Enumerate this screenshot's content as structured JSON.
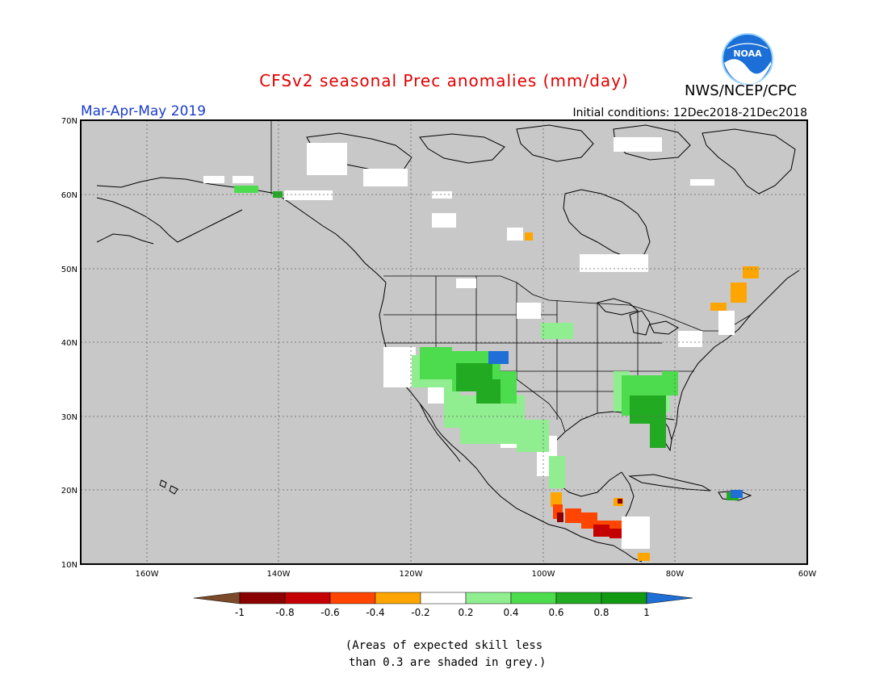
{
  "header": {
    "title": "CFSv2 seasonal Prec anomalies (mm/day)",
    "agency": "NWS/NCEP/CPC",
    "logo_text": "NOAA",
    "season": "Mar-Apr-May 2019",
    "initial_conditions": "Initial conditions: 12Dec2018-21Dec2018"
  },
  "map": {
    "lat_labels": [
      "70N",
      "60N",
      "50N",
      "40N",
      "30N",
      "20N",
      "10N"
    ],
    "lon_labels": [
      "160W",
      "140W",
      "120W",
      "100W",
      "80W",
      "60W"
    ],
    "grey_meaning": "low-skill area"
  },
  "legend": {
    "bins": [
      {
        "color": "#8b0000"
      },
      {
        "color": "#c40000"
      },
      {
        "color": "#ff4500"
      },
      {
        "color": "#ffa500"
      },
      {
        "color": "#ffffff"
      },
      {
        "color": "#90ee90"
      },
      {
        "color": "#4ddc4d"
      },
      {
        "color": "#22aa22"
      },
      {
        "color": "#119911"
      }
    ],
    "left_arrow_color": "#7a4a2a",
    "right_arrow_color": "#1f6fd6",
    "tick_labels": [
      "-1",
      "-0.8",
      "-0.6",
      "-0.4",
      "-0.2",
      "0.2",
      "0.4",
      "0.6",
      "0.8",
      "1"
    ]
  },
  "footnote": "(Areas of expected skill less\n than 0.3 are shaded in grey.)"
}
